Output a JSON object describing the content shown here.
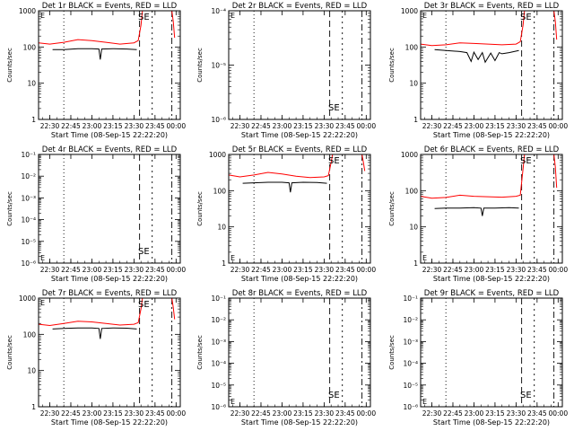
{
  "figure": {
    "xlabel": "Start Time (08-Sep-15 22:22:20)",
    "ylabel": "Counts/sec",
    "x_ticks": [
      "22:30",
      "22:45",
      "23:00",
      "23:15",
      "23:30",
      "23:45",
      "00:00"
    ],
    "line_colors": {
      "events": "#000000",
      "lld": "#ff0000"
    }
  },
  "chart_data": [
    {
      "type": "line",
      "title": "Det 1r BLACK = Events, RED = LLD",
      "ylabel": "Counts/sec",
      "xlabel": "Start Time (08-Sep-15 22:22:20)",
      "y_scale": "log",
      "ylim": [
        1,
        1000
      ],
      "y_ticks": [
        "1",
        "10",
        "100",
        "1000"
      ],
      "x_ticks": [
        "22:30",
        "22:45",
        "23:00",
        "23:15",
        "23:30",
        "23:45",
        "00:00"
      ],
      "corner_label": "E",
      "event_label": "SE",
      "series": [
        {
          "name": "LLD",
          "color": "#ff0000",
          "segments": [
            {
              "x": [
                "22:22",
                "22:30",
                "22:40",
                "22:50",
                "23:00",
                "23:10",
                "23:20",
                "23:30",
                "23:33",
                "23:35",
                "23:36"
              ],
              "y": [
                130,
                120,
                135,
                160,
                150,
                135,
                120,
                130,
                150,
                400,
                1000
              ]
            },
            {
              "x": [
                "23:57",
                "23:58",
                "23:59"
              ],
              "y": [
                1000,
                500,
                180
              ]
            }
          ]
        },
        {
          "name": "Events",
          "color": "#000000",
          "segments": [
            {
              "x": [
                "22:32",
                "22:40",
                "22:50",
                "23:00",
                "23:05",
                "23:06",
                "23:07",
                "23:15",
                "23:25",
                "23:32"
              ],
              "y": [
                85,
                85,
                90,
                90,
                88,
                45,
                88,
                90,
                88,
                85
              ]
            }
          ]
        }
      ]
    },
    {
      "type": "line",
      "title": "Det 2r BLACK = Events, RED = LLD",
      "ylabel": "Counts/sec",
      "xlabel": "Start Time (08-Sep-15 22:22:20)",
      "y_scale": "log",
      "ylim": [
        1e-06,
        0.0001
      ],
      "y_ticks": [
        "10⁻⁶",
        "10⁻⁵",
        "10⁻⁴"
      ],
      "x_ticks": [
        "22:30",
        "22:45",
        "23:00",
        "23:15",
        "23:30",
        "23:45",
        "00:00"
      ],
      "corner_label": "E",
      "event_label": "SE",
      "series": []
    },
    {
      "type": "line",
      "title": "Det 3r BLACK = Events, RED = LLD",
      "ylabel": "Counts/sec",
      "xlabel": "Start Time (08-Sep-15 22:22:20)",
      "y_scale": "log",
      "ylim": [
        1,
        1000
      ],
      "y_ticks": [
        "1",
        "10",
        "100",
        "1000"
      ],
      "x_ticks": [
        "22:30",
        "22:45",
        "23:00",
        "23:15",
        "23:30",
        "23:45",
        "00:00"
      ],
      "corner_label": "E",
      "event_label": "SE",
      "series": [
        {
          "name": "LLD",
          "color": "#ff0000",
          "segments": [
            {
              "x": [
                "22:22",
                "22:30",
                "22:40",
                "22:50",
                "23:00",
                "23:10",
                "23:20",
                "23:30",
                "23:33",
                "23:35",
                "23:36"
              ],
              "y": [
                120,
                110,
                115,
                130,
                125,
                120,
                115,
                120,
                140,
                400,
                1000
              ]
            },
            {
              "x": [
                "23:57",
                "23:58",
                "23:59"
              ],
              "y": [
                1000,
                500,
                160
              ]
            }
          ]
        },
        {
          "name": "Events",
          "color": "#000000",
          "segments": [
            {
              "x": [
                "22:32",
                "22:40",
                "22:50",
                "22:55",
                "22:58",
                "23:00",
                "23:03",
                "23:06",
                "23:08",
                "23:12",
                "23:15",
                "23:18",
                "23:20",
                "23:25",
                "23:32"
              ],
              "y": [
                85,
                80,
                75,
                70,
                40,
                72,
                45,
                70,
                38,
                68,
                42,
                70,
                65,
                70,
                80
              ]
            }
          ]
        }
      ]
    },
    {
      "type": "line",
      "title": "Det 4r BLACK = Events, RED = LLD",
      "ylabel": "Counts/sec",
      "xlabel": "Start Time (08-Sep-15 22:22:20)",
      "y_scale": "log",
      "ylim": [
        1e-06,
        0.1
      ],
      "y_ticks": [
        "10⁻⁶",
        "10⁻⁵",
        "10⁻⁴",
        "10⁻³",
        "10⁻²",
        "10⁻¹"
      ],
      "x_ticks": [
        "22:30",
        "22:45",
        "23:00",
        "23:15",
        "23:30",
        "23:45",
        "00:00"
      ],
      "corner_label": "E",
      "event_label": "SE",
      "series": []
    },
    {
      "type": "line",
      "title": "Det 5r BLACK = Events, RED = LLD",
      "ylabel": "Counts/sec",
      "xlabel": "Start Time (08-Sep-15 22:22:20)",
      "y_scale": "log",
      "ylim": [
        1,
        1000
      ],
      "y_ticks": [
        "1",
        "10",
        "100",
        "1000"
      ],
      "x_ticks": [
        "22:30",
        "22:45",
        "23:00",
        "23:15",
        "23:30",
        "23:45",
        "00:00"
      ],
      "corner_label": "E",
      "event_label": "SE",
      "series": [
        {
          "name": "LLD",
          "color": "#ff0000",
          "segments": [
            {
              "x": [
                "22:22",
                "22:30",
                "22:40",
                "22:50",
                "23:00",
                "23:10",
                "23:20",
                "23:30",
                "23:33",
                "23:35",
                "23:36"
              ],
              "y": [
                270,
                240,
                270,
                320,
                290,
                250,
                230,
                240,
                260,
                600,
                1000
              ]
            },
            {
              "x": [
                "23:57",
                "23:58",
                "23:59"
              ],
              "y": [
                1000,
                600,
                350
              ]
            }
          ]
        },
        {
          "name": "Events",
          "color": "#000000",
          "segments": [
            {
              "x": [
                "22:32",
                "22:40",
                "22:50",
                "23:00",
                "23:05",
                "23:06",
                "23:07",
                "23:15",
                "23:25",
                "23:32"
              ],
              "y": [
                160,
                165,
                170,
                170,
                165,
                90,
                165,
                170,
                168,
                160
              ]
            }
          ]
        }
      ]
    },
    {
      "type": "line",
      "title": "Det 6r BLACK = Events, RED = LLD",
      "ylabel": "Counts/sec",
      "xlabel": "Start Time (08-Sep-15 22:22:20)",
      "y_scale": "log",
      "ylim": [
        1,
        1000
      ],
      "y_ticks": [
        "1",
        "10",
        "100",
        "1000"
      ],
      "x_ticks": [
        "22:30",
        "22:45",
        "23:00",
        "23:15",
        "23:30",
        "23:45",
        "00:00"
      ],
      "corner_label": "E",
      "event_label": "SE",
      "series": [
        {
          "name": "LLD",
          "color": "#ff0000",
          "segments": [
            {
              "x": [
                "22:22",
                "22:30",
                "22:40",
                "22:50",
                "23:00",
                "23:10",
                "23:20",
                "23:30",
                "23:33",
                "23:35",
                "23:36"
              ],
              "y": [
                70,
                62,
                65,
                75,
                70,
                68,
                66,
                70,
                75,
                400,
                1000
              ]
            },
            {
              "x": [
                "23:57",
                "23:58",
                "23:59"
              ],
              "y": [
                1000,
                450,
                120
              ]
            }
          ]
        },
        {
          "name": "Events",
          "color": "#000000",
          "segments": [
            {
              "x": [
                "22:32",
                "22:40",
                "22:50",
                "23:00",
                "23:05",
                "23:06",
                "23:07",
                "23:15",
                "23:25",
                "23:32"
              ],
              "y": [
                32,
                33,
                33,
                34,
                33,
                20,
                33,
                33,
                34,
                33
              ]
            }
          ]
        }
      ]
    },
    {
      "type": "line",
      "title": "Det 7r BLACK = Events, RED = LLD",
      "ylabel": "Counts/sec",
      "xlabel": "Start Time (08-Sep-15 22:22:20)",
      "y_scale": "log",
      "ylim": [
        1,
        1000
      ],
      "y_ticks": [
        "1",
        "10",
        "100",
        "1000"
      ],
      "x_ticks": [
        "22:30",
        "22:45",
        "23:00",
        "23:15",
        "23:30",
        "23:45",
        "00:00"
      ],
      "corner_label": "E",
      "event_label": "SE",
      "series": [
        {
          "name": "LLD",
          "color": "#ff0000",
          "segments": [
            {
              "x": [
                "22:22",
                "22:30",
                "22:40",
                "22:50",
                "23:00",
                "23:10",
                "23:20",
                "23:30",
                "23:33",
                "23:35",
                "23:36"
              ],
              "y": [
                190,
                175,
                200,
                230,
                220,
                200,
                180,
                190,
                210,
                500,
                1000
              ]
            },
            {
              "x": [
                "23:57",
                "23:58",
                "23:59"
              ],
              "y": [
                1000,
                550,
                260
              ]
            }
          ]
        },
        {
          "name": "Events",
          "color": "#000000",
          "segments": [
            {
              "x": [
                "22:32",
                "22:40",
                "22:50",
                "23:00",
                "23:05",
                "23:06",
                "23:07",
                "23:15",
                "23:25",
                "23:32"
              ],
              "y": [
                140,
                145,
                150,
                150,
                145,
                75,
                145,
                150,
                148,
                140
              ]
            }
          ]
        }
      ]
    },
    {
      "type": "line",
      "title": "Det 8r BLACK = Events, RED = LLD",
      "ylabel": "Counts/sec",
      "xlabel": "Start Time (08-Sep-15 22:22:20)",
      "y_scale": "log",
      "ylim": [
        1e-06,
        0.1
      ],
      "y_ticks": [
        "10⁻⁶",
        "10⁻⁵",
        "10⁻⁴",
        "10⁻³",
        "10⁻²",
        "10⁻¹"
      ],
      "x_ticks": [
        "22:30",
        "22:45",
        "23:00",
        "23:15",
        "23:30",
        "23:45",
        "00:00"
      ],
      "corner_label": "E",
      "event_label": "SE",
      "series": []
    },
    {
      "type": "line",
      "title": "Det 9r BLACK = Events, RED = LLD",
      "ylabel": "Counts/sec",
      "xlabel": "Start Time (08-Sep-15 22:22:20)",
      "y_scale": "log",
      "ylim": [
        1e-06,
        0.1
      ],
      "y_ticks": [
        "10⁻⁶",
        "10⁻⁵",
        "10⁻⁴",
        "10⁻³",
        "10⁻²",
        "10⁻¹"
      ],
      "x_ticks": [
        "22:30",
        "22:45",
        "23:00",
        "23:15",
        "23:30",
        "23:45",
        "00:00"
      ],
      "corner_label": "E",
      "event_label": "SE",
      "series": []
    }
  ]
}
